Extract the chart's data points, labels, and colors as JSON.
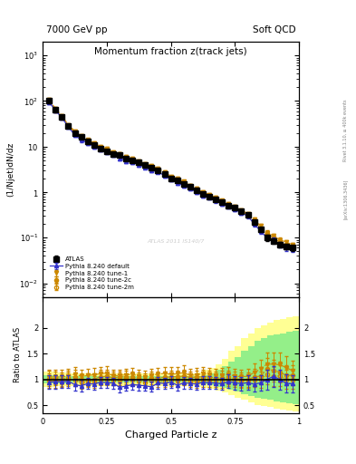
{
  "title": "Momentum fraction z(track jets)",
  "top_left_label": "7000 GeV pp",
  "top_right_label": "Soft QCD",
  "ylabel_main": "(1/Njet)dN/dz",
  "ylabel_ratio": "Ratio to ATLAS",
  "xlabel": "Charged Particle z",
  "right_label_top": "Rivet 3.1.10, ≥ 400k events",
  "right_label_bot": "[arXiv:1306.3436]",
  "watermark": "ATLAS 2011 IS140/7",
  "atlas_label": "ATLAS",
  "legend_pythia": [
    "Pythia 8.240 default",
    "Pythia 8.240 tune-1",
    "Pythia 8.240 tune-2c",
    "Pythia 8.240 tune-2m"
  ],
  "z": [
    0.025,
    0.05,
    0.075,
    0.1,
    0.125,
    0.15,
    0.175,
    0.2,
    0.225,
    0.25,
    0.275,
    0.3,
    0.325,
    0.35,
    0.375,
    0.4,
    0.425,
    0.45,
    0.475,
    0.5,
    0.525,
    0.55,
    0.575,
    0.6,
    0.625,
    0.65,
    0.675,
    0.7,
    0.725,
    0.75,
    0.775,
    0.8,
    0.825,
    0.85,
    0.875,
    0.9,
    0.925,
    0.95,
    0.975
  ],
  "y_atlas": [
    100,
    65,
    45,
    28,
    20,
    16,
    13,
    11,
    9,
    8,
    7,
    6.5,
    5.5,
    5,
    4.5,
    4,
    3.5,
    3,
    2.5,
    2,
    1.8,
    1.5,
    1.3,
    1.1,
    0.9,
    0.8,
    0.7,
    0.6,
    0.5,
    0.45,
    0.38,
    0.32,
    0.22,
    0.15,
    0.1,
    0.085,
    0.07,
    0.065,
    0.06
  ],
  "y_atlas_err": [
    10,
    6,
    4,
    2.5,
    1.8,
    1.4,
    1.1,
    0.9,
    0.75,
    0.65,
    0.55,
    0.5,
    0.4,
    0.38,
    0.35,
    0.3,
    0.28,
    0.25,
    0.2,
    0.18,
    0.15,
    0.13,
    0.11,
    0.09,
    0.08,
    0.07,
    0.06,
    0.055,
    0.05,
    0.045,
    0.04,
    0.035,
    0.025,
    0.018,
    0.014,
    0.012,
    0.01,
    0.009,
    0.008
  ],
  "y_default": [
    95,
    62,
    43,
    27,
    18,
    14,
    12,
    10,
    8.5,
    7.5,
    6.5,
    5.5,
    4.8,
    4.5,
    4.0,
    3.5,
    3.0,
    2.8,
    2.3,
    1.9,
    1.6,
    1.4,
    1.2,
    1.0,
    0.85,
    0.75,
    0.65,
    0.55,
    0.48,
    0.42,
    0.35,
    0.3,
    0.2,
    0.14,
    0.1,
    0.09,
    0.07,
    0.06,
    0.055
  ],
  "y_default_err": [
    9,
    6,
    4,
    2.5,
    1.7,
    1.3,
    1.0,
    0.9,
    0.7,
    0.6,
    0.5,
    0.45,
    0.4,
    0.35,
    0.32,
    0.28,
    0.25,
    0.22,
    0.18,
    0.16,
    0.13,
    0.12,
    0.1,
    0.09,
    0.08,
    0.07,
    0.06,
    0.05,
    0.045,
    0.04,
    0.035,
    0.03,
    0.022,
    0.016,
    0.013,
    0.011,
    0.009,
    0.008,
    0.007
  ],
  "y_tune1": [
    105,
    68,
    47,
    30,
    22,
    17,
    14,
    12,
    10,
    9,
    7.5,
    7,
    6,
    5.5,
    4.8,
    4.2,
    3.8,
    3.3,
    2.8,
    2.2,
    2.0,
    1.7,
    1.4,
    1.2,
    1.0,
    0.88,
    0.76,
    0.65,
    0.55,
    0.48,
    0.4,
    0.34,
    0.25,
    0.18,
    0.13,
    0.11,
    0.09,
    0.08,
    0.07
  ],
  "y_tune1_err": [
    10,
    6.5,
    4.5,
    2.8,
    2.0,
    1.5,
    1.2,
    1.0,
    0.85,
    0.75,
    0.6,
    0.55,
    0.48,
    0.44,
    0.38,
    0.33,
    0.3,
    0.26,
    0.22,
    0.18,
    0.16,
    0.14,
    0.11,
    0.1,
    0.08,
    0.07,
    0.06,
    0.055,
    0.048,
    0.042,
    0.035,
    0.03,
    0.024,
    0.018,
    0.014,
    0.012,
    0.01,
    0.009,
    0.008
  ],
  "y_tune2c": [
    102,
    66,
    45,
    29,
    21,
    16,
    13,
    11,
    9.5,
    8.5,
    7.2,
    6.8,
    5.8,
    5.2,
    4.6,
    4.0,
    3.6,
    3.1,
    2.6,
    2.1,
    1.9,
    1.6,
    1.35,
    1.15,
    0.95,
    0.84,
    0.72,
    0.62,
    0.52,
    0.46,
    0.38,
    0.32,
    0.23,
    0.16,
    0.12,
    0.1,
    0.08,
    0.07,
    0.065
  ],
  "y_tune2c_err": [
    10,
    6.3,
    4.3,
    2.7,
    1.9,
    1.4,
    1.1,
    0.95,
    0.8,
    0.7,
    0.58,
    0.52,
    0.45,
    0.41,
    0.37,
    0.32,
    0.29,
    0.25,
    0.21,
    0.17,
    0.15,
    0.13,
    0.11,
    0.09,
    0.08,
    0.07,
    0.06,
    0.053,
    0.046,
    0.041,
    0.034,
    0.029,
    0.022,
    0.016,
    0.013,
    0.011,
    0.009,
    0.008,
    0.007
  ],
  "y_tune2m": [
    98,
    63,
    44,
    28,
    20,
    15,
    12.5,
    10.5,
    9,
    8,
    7,
    6.5,
    5.6,
    5.0,
    4.4,
    3.8,
    3.4,
    2.9,
    2.4,
    2.0,
    1.75,
    1.5,
    1.25,
    1.05,
    0.88,
    0.78,
    0.68,
    0.58,
    0.5,
    0.44,
    0.37,
    0.31,
    0.22,
    0.15,
    0.11,
    0.09,
    0.075,
    0.065,
    0.06
  ],
  "y_tune2m_err": [
    9.5,
    6.0,
    4.2,
    2.6,
    1.8,
    1.35,
    1.05,
    0.9,
    0.75,
    0.65,
    0.56,
    0.5,
    0.43,
    0.4,
    0.35,
    0.3,
    0.27,
    0.23,
    0.19,
    0.16,
    0.14,
    0.12,
    0.1,
    0.09,
    0.075,
    0.066,
    0.058,
    0.05,
    0.044,
    0.039,
    0.033,
    0.028,
    0.021,
    0.015,
    0.012,
    0.01,
    0.009,
    0.008,
    0.007
  ],
  "color_atlas": "#000000",
  "color_default": "#3333cc",
  "color_orange": "#cc8800",
  "ylim_main": [
    0.005,
    2000
  ],
  "ylim_ratio": [
    0.35,
    2.6
  ],
  "xlim": [
    0.0,
    1.0
  ],
  "band_z_edges": [
    0.0,
    0.05,
    0.1,
    0.15,
    0.2,
    0.25,
    0.3,
    0.35,
    0.4,
    0.45,
    0.5,
    0.55,
    0.6,
    0.625,
    0.65,
    0.675,
    0.7,
    0.725,
    0.75,
    0.775,
    0.8,
    0.825,
    0.85,
    0.875,
    0.9,
    0.925,
    0.95,
    0.975,
    1.0
  ],
  "band_yellow_lo": [
    0.85,
    0.87,
    0.88,
    0.88,
    0.88,
    0.88,
    0.88,
    0.88,
    0.88,
    0.88,
    0.88,
    0.88,
    0.86,
    0.84,
    0.82,
    0.78,
    0.74,
    0.7,
    0.65,
    0.6,
    0.55,
    0.5,
    0.48,
    0.46,
    0.44,
    0.42,
    0.4,
    0.38
  ],
  "band_yellow_hi": [
    1.15,
    1.13,
    1.12,
    1.12,
    1.12,
    1.12,
    1.12,
    1.12,
    1.12,
    1.12,
    1.12,
    1.12,
    1.14,
    1.18,
    1.22,
    1.3,
    1.4,
    1.55,
    1.65,
    1.8,
    1.9,
    2.0,
    2.05,
    2.1,
    2.15,
    2.18,
    2.2,
    2.22
  ],
  "band_green_lo": [
    0.92,
    0.93,
    0.94,
    0.94,
    0.94,
    0.94,
    0.94,
    0.94,
    0.94,
    0.94,
    0.94,
    0.94,
    0.93,
    0.91,
    0.89,
    0.86,
    0.83,
    0.8,
    0.76,
    0.72,
    0.68,
    0.64,
    0.62,
    0.6,
    0.58,
    0.56,
    0.54,
    0.52
  ],
  "band_green_hi": [
    1.08,
    1.07,
    1.06,
    1.06,
    1.06,
    1.06,
    1.06,
    1.06,
    1.06,
    1.06,
    1.06,
    1.06,
    1.07,
    1.09,
    1.12,
    1.18,
    1.25,
    1.35,
    1.44,
    1.55,
    1.65,
    1.75,
    1.8,
    1.85,
    1.88,
    1.9,
    1.92,
    1.94
  ]
}
